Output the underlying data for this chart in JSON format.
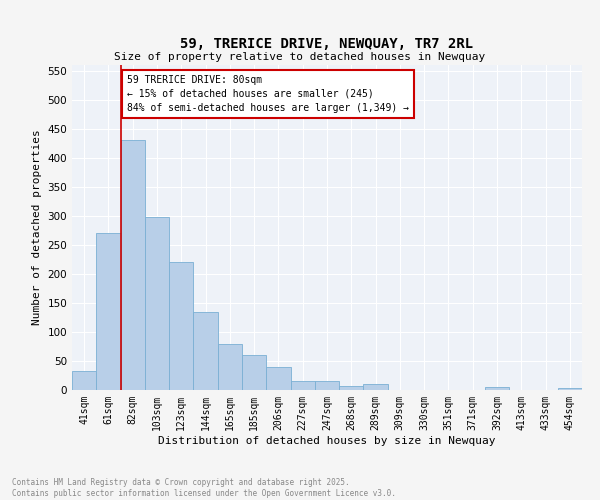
{
  "title": "59, TRERICE DRIVE, NEWQUAY, TR7 2RL",
  "subtitle": "Size of property relative to detached houses in Newquay",
  "xlabel": "Distribution of detached houses by size in Newquay",
  "ylabel": "Number of detached properties",
  "bar_color": "#b8cfe8",
  "bar_edge_color": "#7aafd4",
  "background_color": "#eef2f8",
  "grid_color": "#ffffff",
  "fig_facecolor": "#f5f5f5",
  "categories": [
    "41sqm",
    "61sqm",
    "82sqm",
    "103sqm",
    "123sqm",
    "144sqm",
    "165sqm",
    "185sqm",
    "206sqm",
    "227sqm",
    "247sqm",
    "268sqm",
    "289sqm",
    "309sqm",
    "330sqm",
    "351sqm",
    "371sqm",
    "392sqm",
    "413sqm",
    "433sqm",
    "454sqm"
  ],
  "values": [
    33,
    270,
    430,
    298,
    220,
    135,
    80,
    60,
    40,
    15,
    16,
    7,
    10,
    0,
    0,
    0,
    0,
    5,
    0,
    0,
    3
  ],
  "ylim": [
    0,
    560
  ],
  "yticks": [
    0,
    50,
    100,
    150,
    200,
    250,
    300,
    350,
    400,
    450,
    500,
    550
  ],
  "property_line_color": "#cc0000",
  "annotation_text": "59 TRERICE DRIVE: 80sqm\n← 15% of detached houses are smaller (245)\n84% of semi-detached houses are larger (1,349) →",
  "annotation_box_color": "#cc0000",
  "footer_line1": "Contains HM Land Registry data © Crown copyright and database right 2025.",
  "footer_line2": "Contains public sector information licensed under the Open Government Licence v3.0.",
  "footer_color": "#888888",
  "title_fontsize": 10,
  "subtitle_fontsize": 8,
  "axis_label_fontsize": 8,
  "tick_fontsize": 7,
  "annotation_fontsize": 7,
  "footer_fontsize": 5.5
}
